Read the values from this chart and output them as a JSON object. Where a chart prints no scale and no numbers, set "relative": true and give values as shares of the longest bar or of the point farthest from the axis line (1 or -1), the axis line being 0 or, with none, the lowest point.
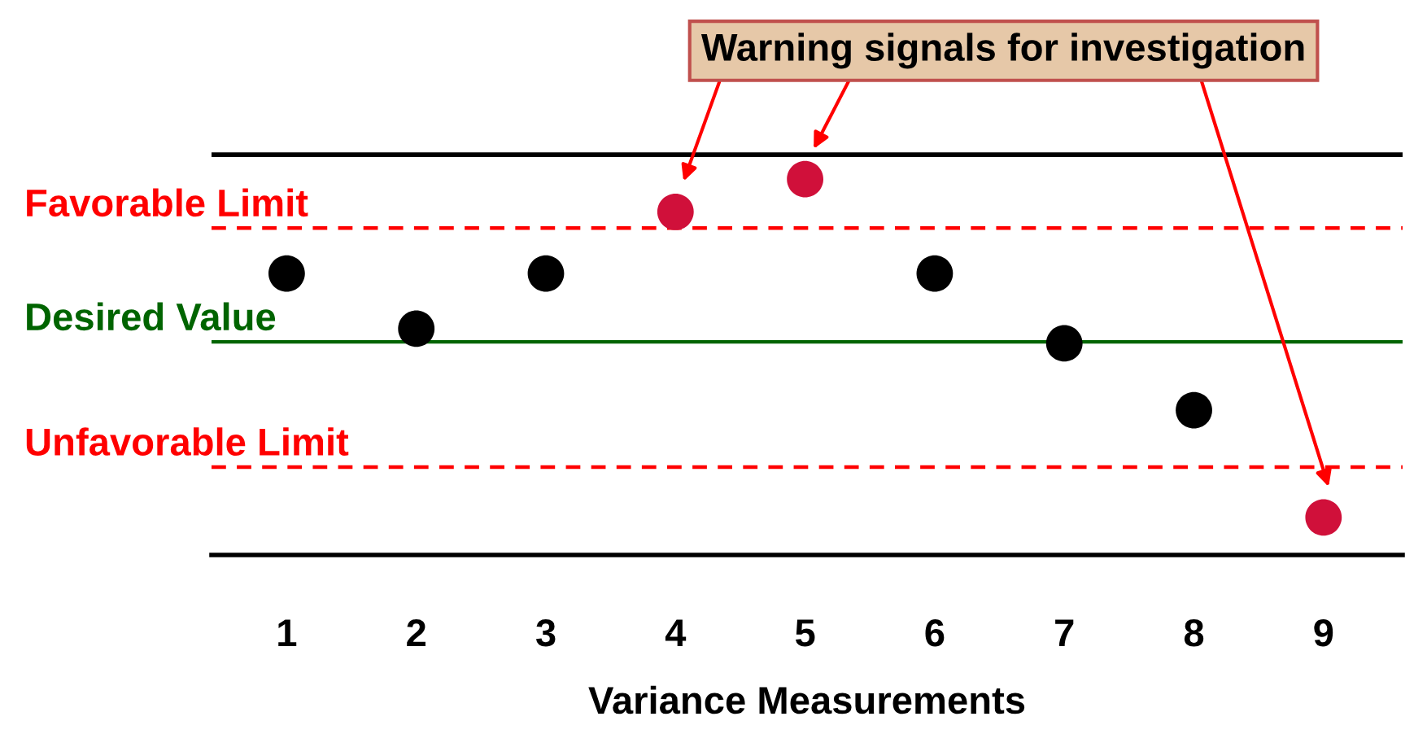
{
  "chart_data": {
    "type": "scatter",
    "relative": true,
    "xlabel": "Variance Measurements",
    "categories": [
      "1",
      "2",
      "3",
      "4",
      "5",
      "6",
      "7",
      "8",
      "9"
    ],
    "values": [
      0.749,
      0.602,
      0.749,
      0.913,
      1,
      0.749,
      0.563,
      0.385,
      0.1
    ],
    "colors": [
      "#000000",
      "#000000",
      "#000000",
      "#d0103a",
      "#d0103a",
      "#000000",
      "#000000",
      "#000000",
      "#d0103a"
    ],
    "marker": "circle",
    "ref_lines": [
      {
        "axis": "y",
        "value": 1.065,
        "label": null,
        "color": "#000000",
        "line_style": "solid"
      },
      {
        "axis": "y",
        "value": 0.87,
        "label": "Favorable Limit",
        "color": "#ff0000",
        "line_style": "dashed"
      },
      {
        "axis": "y",
        "value": 0.567,
        "label": "Desired Value",
        "color": "#006400",
        "line_style": "solid"
      },
      {
        "axis": "y",
        "value": 0.234,
        "label": "Unfavorable Limit",
        "color": "#ff0000",
        "line_style": "dashed"
      }
    ],
    "annotations": [
      "Warning signals for investigation"
    ],
    "grid": false
  }
}
